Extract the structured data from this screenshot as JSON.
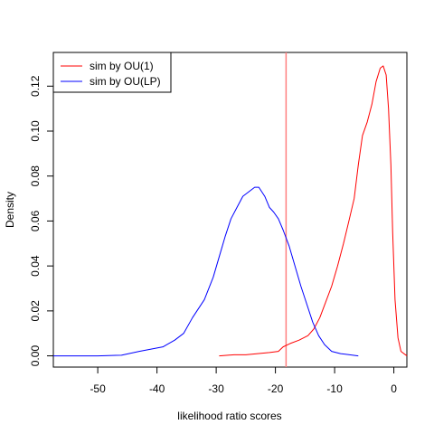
{
  "chart_data": {
    "type": "line",
    "title": "",
    "xlabel": "likelihood ratio scores",
    "ylabel": "Density",
    "xlim": [
      -57.5,
      2.2
    ],
    "ylim": [
      -0.005,
      0.135
    ],
    "x_ticks": [
      -50,
      -40,
      -30,
      -20,
      -10,
      0
    ],
    "y_ticks": [
      0.0,
      0.02,
      0.04,
      0.06,
      0.08,
      0.1,
      0.12
    ],
    "x_tick_labels": [
      "-50",
      "-40",
      "-30",
      "-20",
      "-10",
      "0"
    ],
    "y_tick_labels": [
      "0.00",
      "0.02",
      "0.04",
      "0.06",
      "0.08",
      "0.10",
      "0.12"
    ],
    "grid": false,
    "legend_position": "top-left",
    "reference_line": {
      "x": -18.2,
      "color": "#ff7f7f"
    },
    "series": [
      {
        "name": "sim by OU(1)",
        "color": "#ff0000",
        "points": [
          [
            -29.5,
            0.0
          ],
          [
            -27.0,
            0.0005
          ],
          [
            -25.0,
            0.0005
          ],
          [
            -23.0,
            0.001
          ],
          [
            -21.0,
            0.0015
          ],
          [
            -19.5,
            0.002
          ],
          [
            -18.7,
            0.004
          ],
          [
            -17.5,
            0.0055
          ],
          [
            -16.0,
            0.007
          ],
          [
            -14.5,
            0.009
          ],
          [
            -13.5,
            0.012
          ],
          [
            -12.5,
            0.017
          ],
          [
            -11.5,
            0.024
          ],
          [
            -10.5,
            0.031
          ],
          [
            -9.5,
            0.04
          ],
          [
            -8.5,
            0.05
          ],
          [
            -7.5,
            0.061
          ],
          [
            -6.7,
            0.07
          ],
          [
            -6.0,
            0.085
          ],
          [
            -5.3,
            0.098
          ],
          [
            -4.5,
            0.104
          ],
          [
            -3.7,
            0.112
          ],
          [
            -3.0,
            0.122
          ],
          [
            -2.3,
            0.128
          ],
          [
            -1.8,
            0.129
          ],
          [
            -1.3,
            0.125
          ],
          [
            -0.9,
            0.11
          ],
          [
            -0.5,
            0.085
          ],
          [
            -0.2,
            0.055
          ],
          [
            0.2,
            0.025
          ],
          [
            0.7,
            0.008
          ],
          [
            1.2,
            0.002
          ],
          [
            2.2,
            0.0
          ]
        ]
      },
      {
        "name": "sim by OU(LP)",
        "color": "#0000ff",
        "points": [
          [
            -57.5,
            0.0
          ],
          [
            -50.0,
            0.0
          ],
          [
            -46.0,
            0.0003
          ],
          [
            -43.0,
            0.002
          ],
          [
            -41.0,
            0.003
          ],
          [
            -39.0,
            0.004
          ],
          [
            -37.0,
            0.007
          ],
          [
            -35.5,
            0.01
          ],
          [
            -34.0,
            0.017
          ],
          [
            -32.0,
            0.025
          ],
          [
            -30.5,
            0.035
          ],
          [
            -29.5,
            0.044
          ],
          [
            -28.5,
            0.053
          ],
          [
            -27.5,
            0.061
          ],
          [
            -26.5,
            0.066
          ],
          [
            -25.5,
            0.071
          ],
          [
            -24.5,
            0.073
          ],
          [
            -23.5,
            0.075
          ],
          [
            -22.8,
            0.075
          ],
          [
            -21.8,
            0.071
          ],
          [
            -21.0,
            0.066
          ],
          [
            -20.3,
            0.064
          ],
          [
            -19.5,
            0.061
          ],
          [
            -18.7,
            0.056
          ],
          [
            -17.7,
            0.049
          ],
          [
            -16.7,
            0.04
          ],
          [
            -15.7,
            0.031
          ],
          [
            -14.7,
            0.023
          ],
          [
            -13.7,
            0.015
          ],
          [
            -12.7,
            0.009
          ],
          [
            -11.7,
            0.005
          ],
          [
            -10.5,
            0.002
          ],
          [
            -9.0,
            0.001
          ],
          [
            -6.0,
            0.0
          ]
        ]
      }
    ]
  }
}
